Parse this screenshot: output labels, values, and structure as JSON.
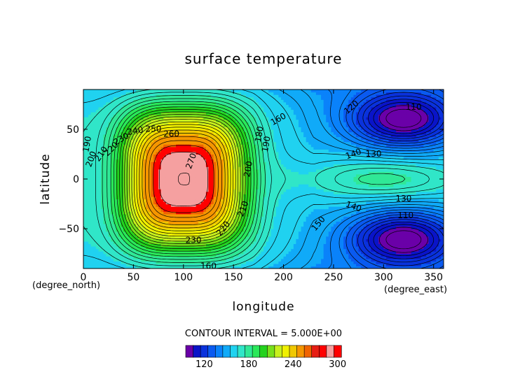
{
  "chart_data": {
    "type": "heatmap",
    "title": "surface temperature",
    "xlabel": "longitude",
    "ylabel": "latitude",
    "x_unit": "(degree_east)",
    "y_unit": "(degree_north)",
    "xlim": [
      0,
      360
    ],
    "ylim": [
      -90,
      90
    ],
    "x_ticks": [
      "0",
      "50",
      "100",
      "150",
      "200",
      "250",
      "300",
      "350"
    ],
    "y_ticks": [
      "50",
      "0",
      "−50"
    ],
    "contour_interval_text": "CONTOUR INTERVAL = 5.000E+00",
    "colorbar": {
      "range": [
        95,
        305
      ],
      "ticks": [
        "120",
        "180",
        "240",
        "300"
      ],
      "colors": [
        "#6a00a8",
        "#0a14c8",
        "#0a32dc",
        "#0a5af0",
        "#0a82fa",
        "#10aaf8",
        "#20d2f0",
        "#30e6c8",
        "#30e896",
        "#2ae85a",
        "#24d21e",
        "#78e01c",
        "#c8f01e",
        "#f0f000",
        "#f0c800",
        "#f59600",
        "#f06400",
        "#e61e14",
        "#ff0000",
        "#f5a0a0",
        "#ff0000"
      ]
    },
    "field_model": {
      "warm_center": {
        "lon": 100,
        "lat": 0,
        "peak": 275
      },
      "cold_centers": [
        {
          "lon": 320,
          "lat": 60,
          "min": 105
        },
        {
          "lon": 320,
          "lat": -60,
          "min": 105
        }
      ],
      "equatorial_band_value": 155
    },
    "contour_labels": [
      {
        "text": "270",
        "lon": 108,
        "lat": 18,
        "rot": -70
      },
      {
        "text": "260",
        "lon": 88,
        "lat": 45,
        "rot": 0
      },
      {
        "text": "250",
        "lon": 70,
        "lat": 50,
        "rot": 0
      },
      {
        "text": "240",
        "lon": 52,
        "lat": 48,
        "rot": -10
      },
      {
        "text": "230",
        "lon": 38,
        "lat": 40,
        "rot": -30
      },
      {
        "text": "220",
        "lon": 28,
        "lat": 30,
        "rot": -45
      },
      {
        "text": "210",
        "lon": 18,
        "lat": 25,
        "rot": -55
      },
      {
        "text": "200",
        "lon": 8,
        "lat": 20,
        "rot": -70
      },
      {
        "text": "190",
        "lon": 4,
        "lat": 35,
        "rot": -80
      },
      {
        "text": "180",
        "lon": 176,
        "lat": 45,
        "rot": -80
      },
      {
        "text": "190",
        "lon": 183,
        "lat": 35,
        "rot": -80
      },
      {
        "text": "200",
        "lon": 165,
        "lat": 10,
        "rot": -80
      },
      {
        "text": "210",
        "lon": 160,
        "lat": -30,
        "rot": -70
      },
      {
        "text": "220",
        "lon": 140,
        "lat": -50,
        "rot": -50
      },
      {
        "text": "230",
        "lon": 110,
        "lat": -62,
        "rot": 0
      },
      {
        "text": "160",
        "lon": 195,
        "lat": 60,
        "rot": -30
      },
      {
        "text": "150",
        "lon": 235,
        "lat": -45,
        "rot": -50
      },
      {
        "text": "140",
        "lon": 270,
        "lat": 25,
        "rot": -20
      },
      {
        "text": "140",
        "lon": 270,
        "lat": -28,
        "rot": 20
      },
      {
        "text": "130",
        "lon": 290,
        "lat": 25,
        "rot": 0
      },
      {
        "text": "130",
        "lon": 320,
        "lat": -20,
        "rot": 0
      },
      {
        "text": "120",
        "lon": 268,
        "lat": 72,
        "rot": -40
      },
      {
        "text": "110",
        "lon": 330,
        "lat": 72,
        "rot": 0
      },
      {
        "text": "110",
        "lon": 322,
        "lat": -37,
        "rot": 0
      },
      {
        "text": "160",
        "lon": 125,
        "lat": -88,
        "rot": 0
      }
    ]
  }
}
